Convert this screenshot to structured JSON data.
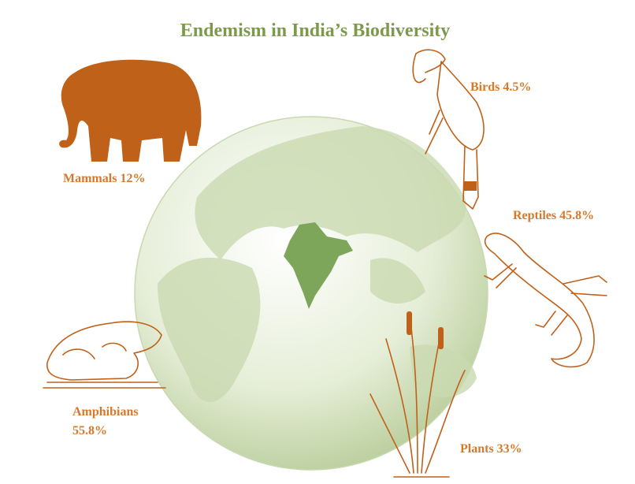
{
  "title": "Endemism in India’s Biodiversity",
  "groups": [
    {
      "name": "Mammals",
      "value": "12%"
    },
    {
      "name": "Birds",
      "value": "4.5%"
    },
    {
      "name": "Reptiles",
      "value": "45.8%"
    },
    {
      "name": "Amphibians",
      "value": "55.8%"
    },
    {
      "name": "Plants",
      "value": "33%"
    }
  ]
}
